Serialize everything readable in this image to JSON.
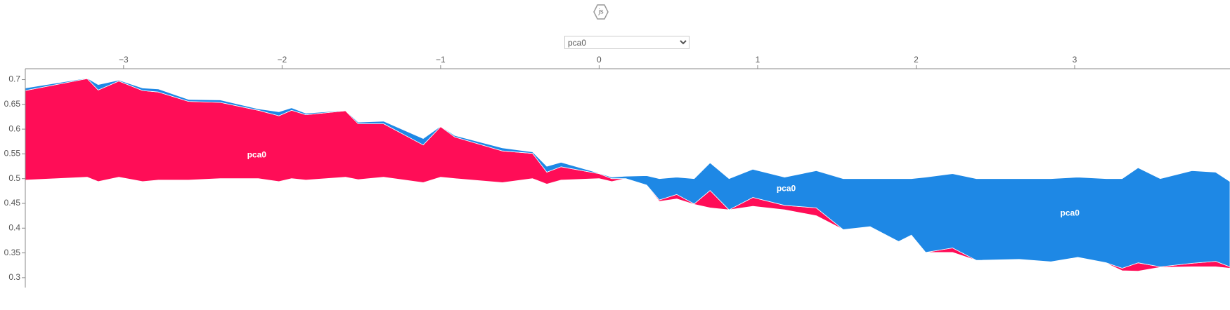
{
  "icon_label": "js",
  "controls": {
    "feature_select": "pca0"
  },
  "chart_data": {
    "type": "area",
    "x": [
      -3.62,
      -3.23,
      -3.16,
      -3.03,
      -2.88,
      -2.78,
      -2.59,
      -2.39,
      -2.15,
      -2.02,
      -1.94,
      -1.85,
      -1.6,
      -1.52,
      -1.36,
      -1.11,
      -1.0,
      -0.91,
      -0.61,
      -0.42,
      -0.33,
      -0.24,
      0,
      0.08,
      0.17,
      0.3,
      0.38,
      0.49,
      0.6,
      0.7,
      0.82,
      0.97,
      1.17,
      1.37,
      1.54,
      1.71,
      1.89,
      1.97,
      2.06,
      2.23,
      2.38,
      2.65,
      2.85,
      3.02,
      3.2,
      3.3,
      3.4,
      3.54,
      3.74,
      3.89,
      3.98
    ],
    "areas": [
      {
        "color": "#ff0d57",
        "lower": [
          0.497,
          0.503,
          0.494,
          0.503,
          0.494,
          0.497,
          0.497,
          0.5,
          0.5,
          0.494,
          0.5,
          0.497,
          0.503,
          0.498,
          0.503,
          0.492,
          0.503,
          0.5,
          0.492,
          0.5,
          0.489,
          0.497,
          0.5,
          0.494,
          0.5,
          0.486,
          0.454,
          0.459,
          0.448,
          0.441,
          0.437,
          0.444,
          0.437,
          0.425,
          0.397,
          0.403,
          0.373,
          0.386,
          0.351,
          0.351,
          0.335,
          0.337,
          0.332,
          0.34,
          0.329,
          0.314,
          0.313,
          0.321,
          0.322,
          0.322,
          0.319
        ],
        "upper": [
          0.678,
          0.702,
          0.679,
          0.697,
          0.678,
          0.675,
          0.656,
          0.654,
          0.638,
          0.627,
          0.638,
          0.629,
          0.637,
          0.611,
          0.611,
          0.568,
          0.605,
          0.584,
          0.556,
          0.551,
          0.513,
          0.524,
          0.51,
          0.5,
          0.5,
          0.487,
          0.457,
          0.468,
          0.449,
          0.476,
          0.437,
          0.462,
          0.446,
          0.441,
          0.397,
          0.403,
          0.373,
          0.386,
          0.351,
          0.36,
          0.335,
          0.337,
          0.332,
          0.341,
          0.33,
          0.319,
          0.33,
          0.322,
          0.329,
          0.333,
          0.322
        ]
      },
      {
        "color": "#1e88e5",
        "lower": [
          0.678,
          0.702,
          0.679,
          0.697,
          0.678,
          0.675,
          0.656,
          0.654,
          0.638,
          0.627,
          0.638,
          0.629,
          0.637,
          0.611,
          0.611,
          0.568,
          0.605,
          0.584,
          0.556,
          0.551,
          0.513,
          0.524,
          0.51,
          0.5,
          0.5,
          0.487,
          0.457,
          0.468,
          0.449,
          0.476,
          0.437,
          0.462,
          0.446,
          0.441,
          0.397,
          0.403,
          0.373,
          0.386,
          0.351,
          0.36,
          0.335,
          0.337,
          0.332,
          0.341,
          0.33,
          0.319,
          0.33,
          0.322,
          0.329,
          0.333,
          0.322
        ],
        "upper": [
          0.683,
          0.703,
          0.69,
          0.699,
          0.683,
          0.681,
          0.66,
          0.659,
          0.641,
          0.635,
          0.643,
          0.632,
          0.638,
          0.614,
          0.616,
          0.581,
          0.606,
          0.587,
          0.562,
          0.554,
          0.525,
          0.533,
          0.511,
          0.503,
          0.505,
          0.506,
          0.5,
          0.503,
          0.5,
          0.532,
          0.5,
          0.519,
          0.503,
          0.516,
          0.5,
          0.5,
          0.5,
          0.5,
          0.503,
          0.51,
          0.5,
          0.5,
          0.5,
          0.503,
          0.5,
          0.5,
          0.522,
          0.5,
          0.516,
          0.513,
          0.494
        ]
      }
    ],
    "annotations": [
      {
        "text": "pca0",
        "x": -2.16,
        "y": 0.547
      },
      {
        "text": "pca0",
        "x": 1.18,
        "y": 0.479
      },
      {
        "text": "pca0",
        "x": 2.97,
        "y": 0.43
      }
    ],
    "xlim": [
      -3.62,
      3.98
    ],
    "ylim": [
      0.28,
      0.722
    ],
    "xticks": [
      {
        "value": -3,
        "label": "−3"
      },
      {
        "value": -2,
        "label": "−2"
      },
      {
        "value": -1,
        "label": "−1"
      },
      0,
      1,
      2,
      3
    ],
    "yticks": [
      0.3,
      0.35,
      0.4,
      0.45,
      0.5,
      0.55,
      0.6,
      0.65,
      0.7
    ]
  }
}
